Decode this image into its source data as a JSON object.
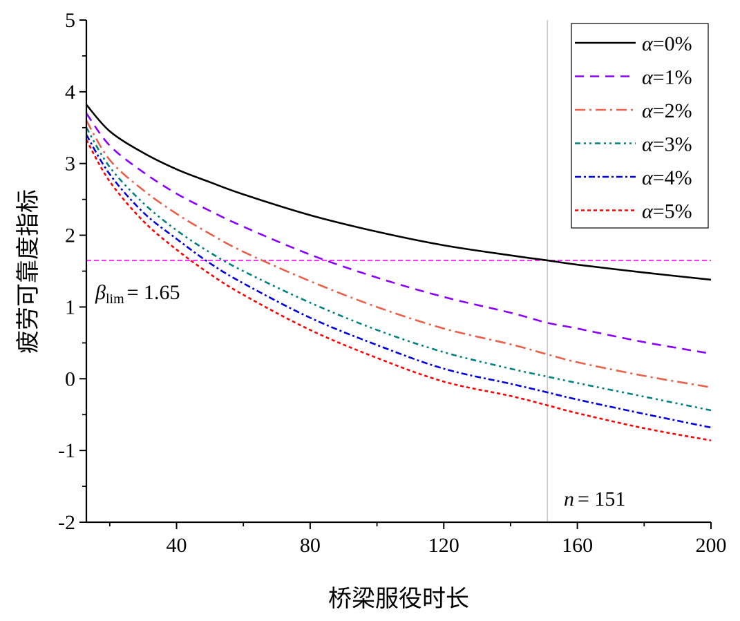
{
  "chart_data": {
    "type": "line",
    "xlabel": "桥梁服役时长",
    "ylabel": "疲劳可靠度指标",
    "xlim": [
      13,
      200
    ],
    "ylim": [
      -2,
      5
    ],
    "x_ticks": [
      40,
      80,
      120,
      160,
      200
    ],
    "y_ticks": [
      5,
      4,
      3,
      2,
      1,
      0,
      -1,
      -2
    ],
    "x_tick_labels": [
      "40",
      "80",
      "120",
      "160",
      "200"
    ],
    "y_tick_labels": [
      "5",
      "4",
      "3",
      "2",
      "1",
      "0",
      "-1",
      "-2"
    ],
    "x": [
      13,
      20,
      30,
      40,
      50,
      60,
      80,
      100,
      120,
      140,
      151,
      160,
      180,
      200
    ],
    "series": [
      {
        "name": "α=0%",
        "legend_symbol": "α",
        "legend_value": "=0%",
        "color": "#000000",
        "dash": "",
        "values": [
          3.82,
          3.45,
          3.15,
          2.92,
          2.74,
          2.57,
          2.28,
          2.05,
          1.86,
          1.72,
          1.65,
          1.59,
          1.48,
          1.38
        ]
      },
      {
        "name": "α=1%",
        "legend_symbol": "α",
        "legend_value": "=1%",
        "color": "#8B00FF",
        "dash": "13,9",
        "values": [
          3.7,
          3.25,
          2.88,
          2.58,
          2.34,
          2.12,
          1.73,
          1.41,
          1.14,
          0.92,
          0.78,
          0.7,
          0.51,
          0.35
        ]
      },
      {
        "name": "α=2%",
        "legend_symbol": "α",
        "legend_value": "=2%",
        "color": "#E8604A",
        "dash": "15,6,3,6",
        "values": [
          3.6,
          3.05,
          2.63,
          2.3,
          2.02,
          1.77,
          1.36,
          1.0,
          0.7,
          0.48,
          0.34,
          0.23,
          0.04,
          -0.12
        ]
      },
      {
        "name": "α=3%",
        "legend_symbol": "α",
        "legend_value": "=3%",
        "color": "#008080",
        "dash": "8,5,3,5,3,5",
        "values": [
          3.5,
          2.95,
          2.45,
          2.07,
          1.76,
          1.5,
          1.06,
          0.68,
          0.37,
          0.14,
          0.03,
          -0.06,
          -0.25,
          -0.44
        ]
      },
      {
        "name": "α=4%",
        "legend_symbol": "α",
        "legend_value": "=4%",
        "color": "#0000E0",
        "dash": "9,4,3,4",
        "values": [
          3.4,
          2.85,
          2.32,
          1.95,
          1.61,
          1.33,
          0.85,
          0.47,
          0.14,
          -0.07,
          -0.19,
          -0.29,
          -0.49,
          -0.68
        ]
      },
      {
        "name": "α=5%",
        "legend_symbol": "α",
        "legend_value": "=5%",
        "color": "#FF0000",
        "dash": "5,4",
        "values": [
          3.33,
          2.75,
          2.2,
          1.8,
          1.46,
          1.17,
          0.68,
          0.29,
          -0.04,
          -0.24,
          -0.37,
          -0.48,
          -0.69,
          -0.86
        ]
      }
    ],
    "threshold": {
      "value": 1.65,
      "color": "#FF00FF",
      "symbol": "β",
      "subscript": "lim",
      "value_text": "= 1.65"
    },
    "vertical_marker": {
      "x": 151,
      "color": "#AAAAAA",
      "symbol": "n",
      "value_text": "= 151"
    },
    "legend_position": "top-right",
    "grid": false
  }
}
